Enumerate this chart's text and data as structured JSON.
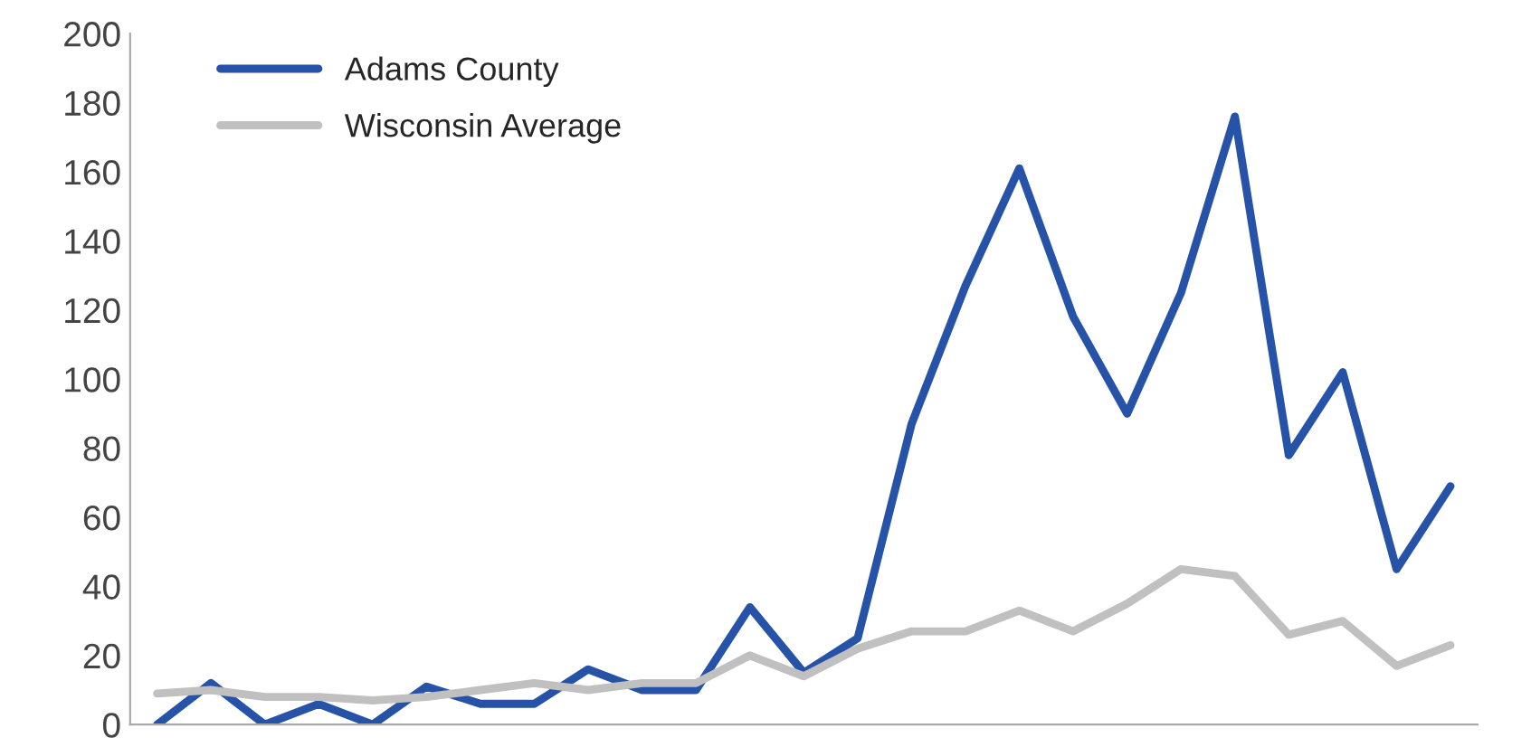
{
  "chart_data": {
    "type": "line",
    "categories": [
      null,
      null,
      null,
      null,
      null,
      null,
      null,
      null,
      null,
      null,
      null,
      null,
      null,
      null,
      null,
      null,
      null,
      null,
      null,
      null,
      null,
      null,
      null,
      null,
      null
    ],
    "series": [
      {
        "name": "Adams County",
        "color": "#2653a8",
        "values": [
          0,
          12,
          0,
          6,
          0,
          11,
          6,
          6,
          16,
          10,
          10,
          34,
          15,
          25,
          87,
          127,
          161,
          118,
          90,
          125,
          176,
          78,
          102,
          45,
          69
        ]
      },
      {
        "name": "Wisconsin Average",
        "color": "#c0c0c0",
        "values": [
          9,
          10,
          8,
          8,
          7,
          8,
          10,
          12,
          10,
          12,
          12,
          20,
          14,
          22,
          27,
          27,
          33,
          27,
          35,
          45,
          43,
          26,
          30,
          17,
          23
        ]
      }
    ],
    "ylim": [
      0,
      200
    ],
    "yticks": [
      0,
      20,
      40,
      60,
      80,
      100,
      120,
      140,
      160,
      180,
      200
    ],
    "grid": false,
    "legend": "top left",
    "marker": "none",
    "line_style": "solid"
  }
}
